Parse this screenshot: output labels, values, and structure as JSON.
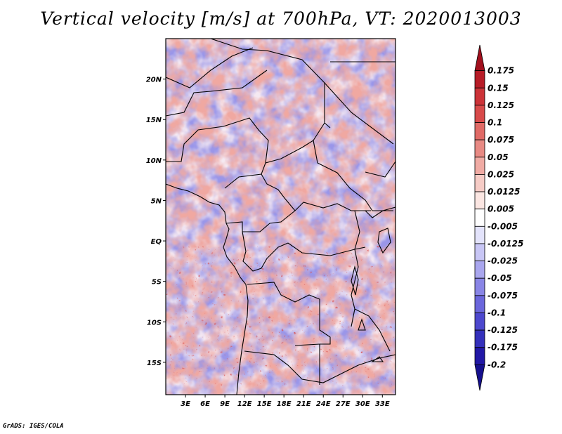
{
  "title": "Vertical velocity [m/s] at 700hPa, VT: 2020013003",
  "credit": "GrADS: IGES/COLA",
  "map": {
    "lat_labels": [
      "20N",
      "15N",
      "10N",
      "5N",
      "EQ",
      "5S",
      "10S",
      "15S"
    ],
    "lat_values": [
      20,
      15,
      10,
      5,
      0,
      -5,
      -10,
      -15
    ],
    "lon_labels": [
      "3E",
      "6E",
      "9E",
      "12E",
      "15E",
      "18E",
      "21E",
      "24E",
      "27E",
      "30E",
      "33E"
    ],
    "lon_values": [
      3,
      6,
      9,
      12,
      15,
      18,
      21,
      24,
      27,
      30,
      33
    ],
    "lon_range": [
      0,
      35
    ],
    "lat_range": [
      -19,
      25
    ]
  },
  "colorbar": {
    "labels": [
      "0.175",
      "0.15",
      "0.125",
      "0.1",
      "0.075",
      "0.05",
      "0.025",
      "0.0125",
      "0.005",
      "-0.005",
      "-0.0125",
      "-0.025",
      "-0.05",
      "-0.075",
      "-0.1",
      "-0.125",
      "-0.175",
      "-0.2"
    ],
    "colors": [
      "#a10f1d",
      "#b71c27",
      "#cc3338",
      "#d84a4a",
      "#e06a66",
      "#e88a84",
      "#f0aba4",
      "#f6ccc6",
      "#fbe6e2",
      "#ffffff",
      "#e3e3fb",
      "#c8c6f5",
      "#a9a6ee",
      "#8985e6",
      "#6b66dc",
      "#4d48ce",
      "#3430bb",
      "#2218a6",
      "#16108e"
    ]
  },
  "colors": {
    "positive": "#e07a72",
    "negative": "#7f7ce6"
  }
}
